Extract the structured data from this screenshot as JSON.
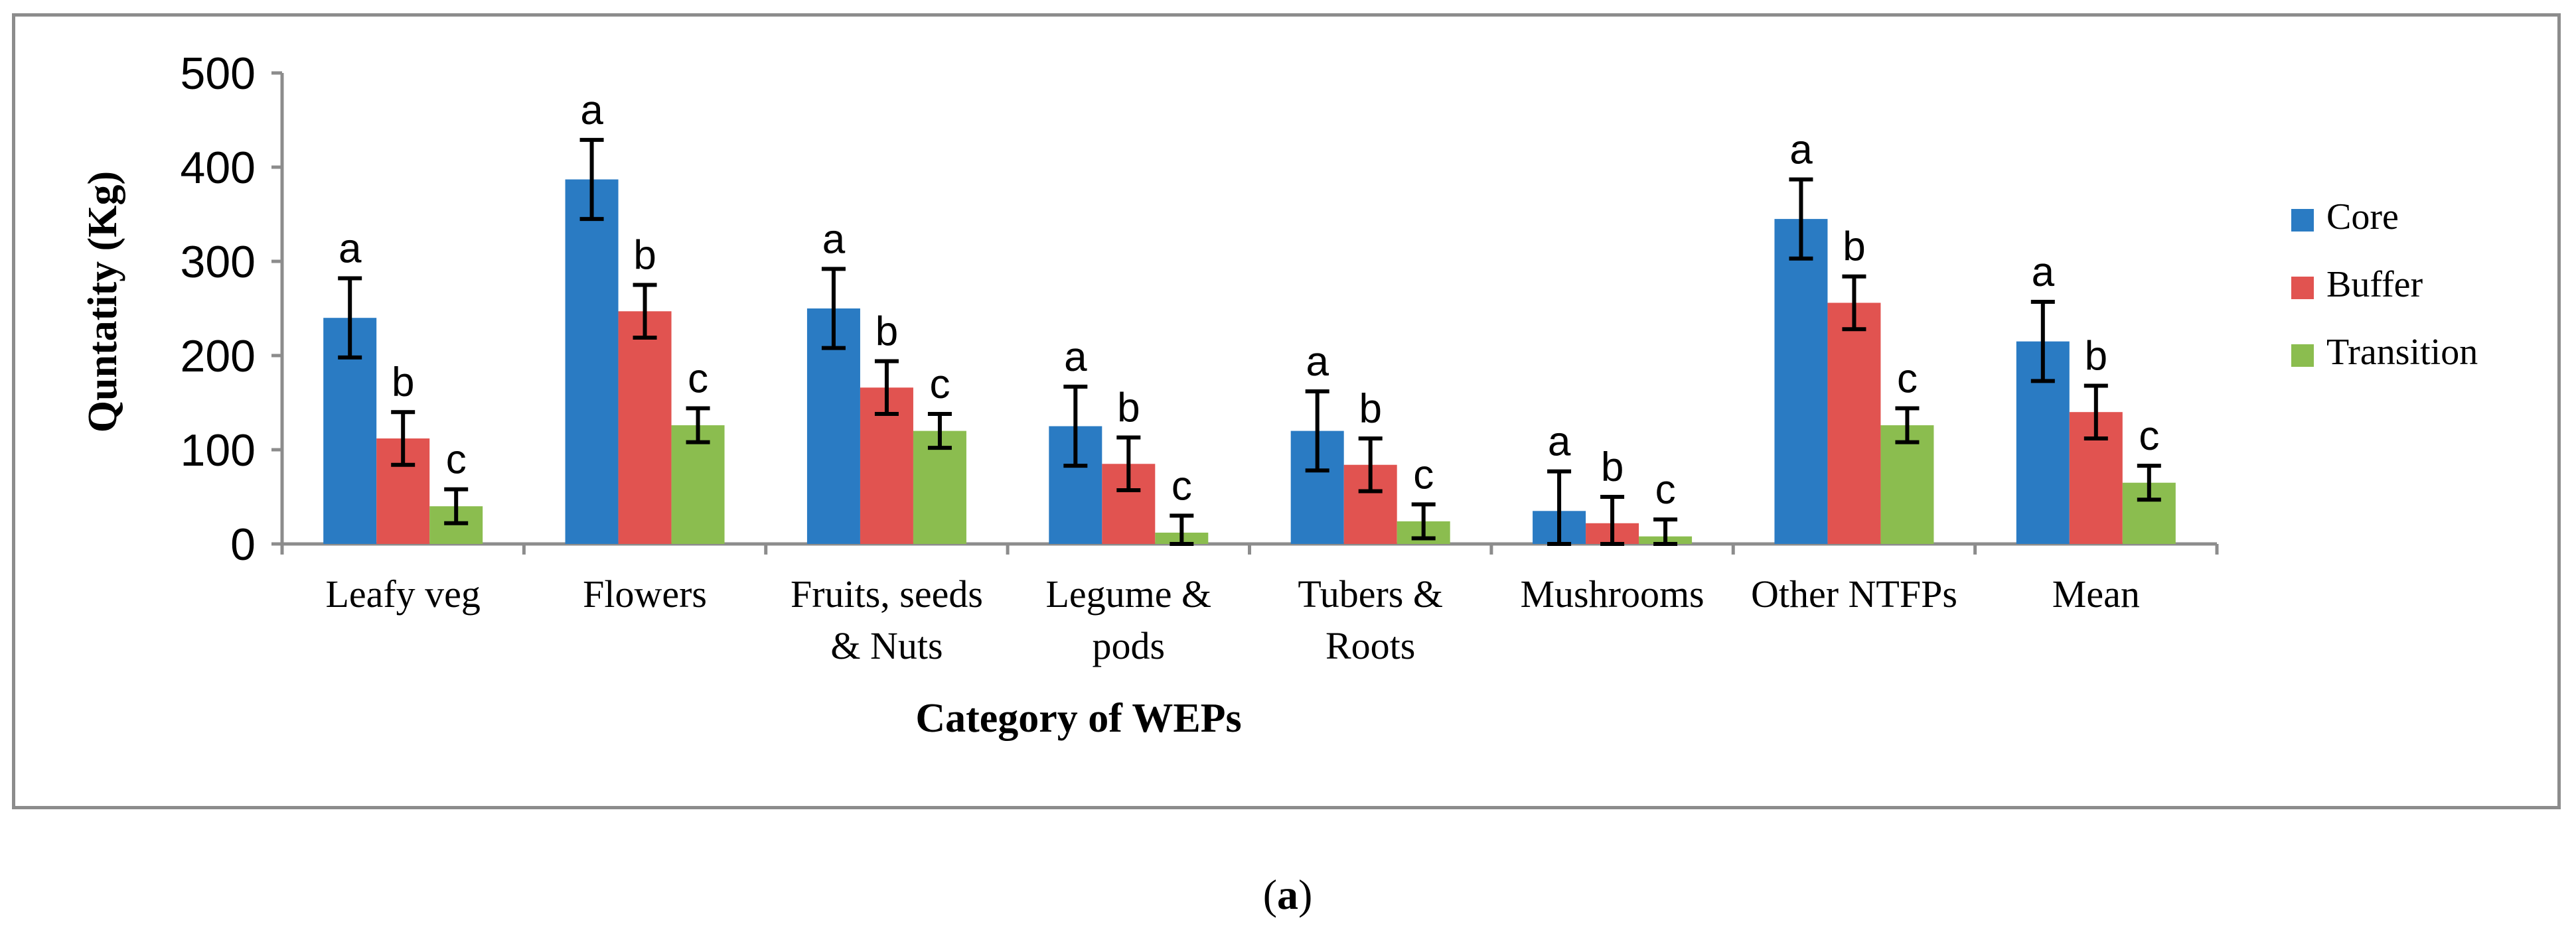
{
  "chart_data": {
    "type": "bar",
    "title": "",
    "xlabel": "Category of WEPs",
    "ylabel": "Quntatity (Kg)",
    "ylim": [
      0,
      500
    ],
    "yticks": [
      "0",
      "100",
      "200",
      "300",
      "400",
      "500"
    ],
    "categories": [
      [
        "Leafy veg"
      ],
      [
        "Flowers"
      ],
      [
        "Fruits, seeds",
        "& Nuts"
      ],
      [
        "Legume &",
        "pods"
      ],
      [
        "Tubers &",
        "Roots"
      ],
      [
        "Mushrooms"
      ],
      [
        "Other NTFPs"
      ],
      [
        "Mean"
      ]
    ],
    "series": [
      {
        "name": "Core",
        "color": "#2a7bc3",
        "values": [
          240,
          387,
          250,
          125,
          120,
          35,
          345,
          215
        ],
        "errors": [
          42,
          42,
          42,
          42,
          42,
          42,
          42,
          42
        ],
        "letters": [
          "a",
          "a",
          "a",
          "a",
          "a",
          "a",
          "a",
          "a"
        ]
      },
      {
        "name": "Buffer",
        "color": "#e15350",
        "values": [
          112,
          247,
          166,
          85,
          84,
          22,
          256,
          140
        ],
        "errors": [
          28,
          28,
          28,
          28,
          28,
          28,
          28,
          28
        ],
        "letters": [
          "b",
          "b",
          "b",
          "b",
          "b",
          "b",
          "b",
          "b"
        ]
      },
      {
        "name": "Transition",
        "color": "#8bbd4f",
        "values": [
          40,
          126,
          120,
          12,
          24,
          8,
          126,
          65
        ],
        "errors": [
          18,
          18,
          18,
          18,
          18,
          18,
          18,
          18
        ],
        "letters": [
          "c",
          "c",
          "c",
          "c",
          "c",
          "c",
          "c",
          "c"
        ]
      }
    ],
    "legend_position": "right",
    "grid": false
  },
  "caption": {
    "open": "(",
    "label": "a",
    "close": ")"
  }
}
